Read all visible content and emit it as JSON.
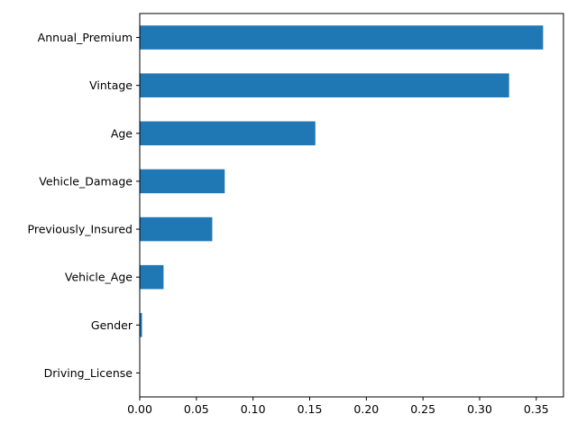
{
  "chart_data": {
    "type": "bar",
    "orientation": "horizontal",
    "categories": [
      "Annual_Premium",
      "Vintage",
      "Age",
      "Vehicle_Damage",
      "Previously_Insured",
      "Vehicle_Age",
      "Gender",
      "Driving_License"
    ],
    "values": [
      0.356,
      0.326,
      0.155,
      0.075,
      0.064,
      0.021,
      0.002,
      0.0001
    ],
    "x_ticks": [
      "0.00",
      "0.05",
      "0.10",
      "0.15",
      "0.20",
      "0.25",
      "0.30",
      "0.35"
    ],
    "xlim": [
      0,
      0.374
    ],
    "bar_color": "#1f77b4",
    "grid": false,
    "title": "",
    "xlabel": "",
    "ylabel": ""
  }
}
